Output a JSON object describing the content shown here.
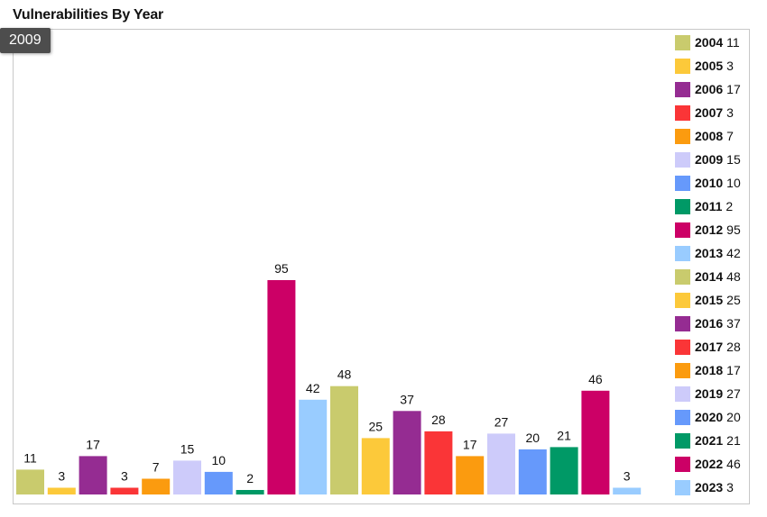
{
  "page": {
    "title": "Vulnerabilities By Year",
    "tooltip": "2009"
  },
  "chart_data": {
    "type": "bar",
    "title": "Vulnerabilities By Year",
    "categories": [
      "2004",
      "2005",
      "2006",
      "2007",
      "2008",
      "2009",
      "2010",
      "2011",
      "2012",
      "2013",
      "2014",
      "2015",
      "2016",
      "2017",
      "2018",
      "2019",
      "2020",
      "2021",
      "2022",
      "2023"
    ],
    "values": [
      11,
      3,
      17,
      3,
      7,
      15,
      10,
      2,
      95,
      42,
      48,
      25,
      37,
      28,
      17,
      27,
      20,
      21,
      46,
      3
    ],
    "colors": [
      "#c9cb6d",
      "#fcc93a",
      "#952c92",
      "#fa3537",
      "#fb9b0f",
      "#cdcbfa",
      "#6699fb",
      "#009966",
      "#cc0066",
      "#99ccff",
      "#c9cb6d",
      "#fcc93a",
      "#952c92",
      "#fa3537",
      "#fb9b0f",
      "#cdcbfa",
      "#6699fb",
      "#009966",
      "#cc0066",
      "#99ccff"
    ],
    "ylim": [
      0,
      105
    ],
    "xlabel": "",
    "ylabel": "",
    "grid": false,
    "legend": "right"
  }
}
